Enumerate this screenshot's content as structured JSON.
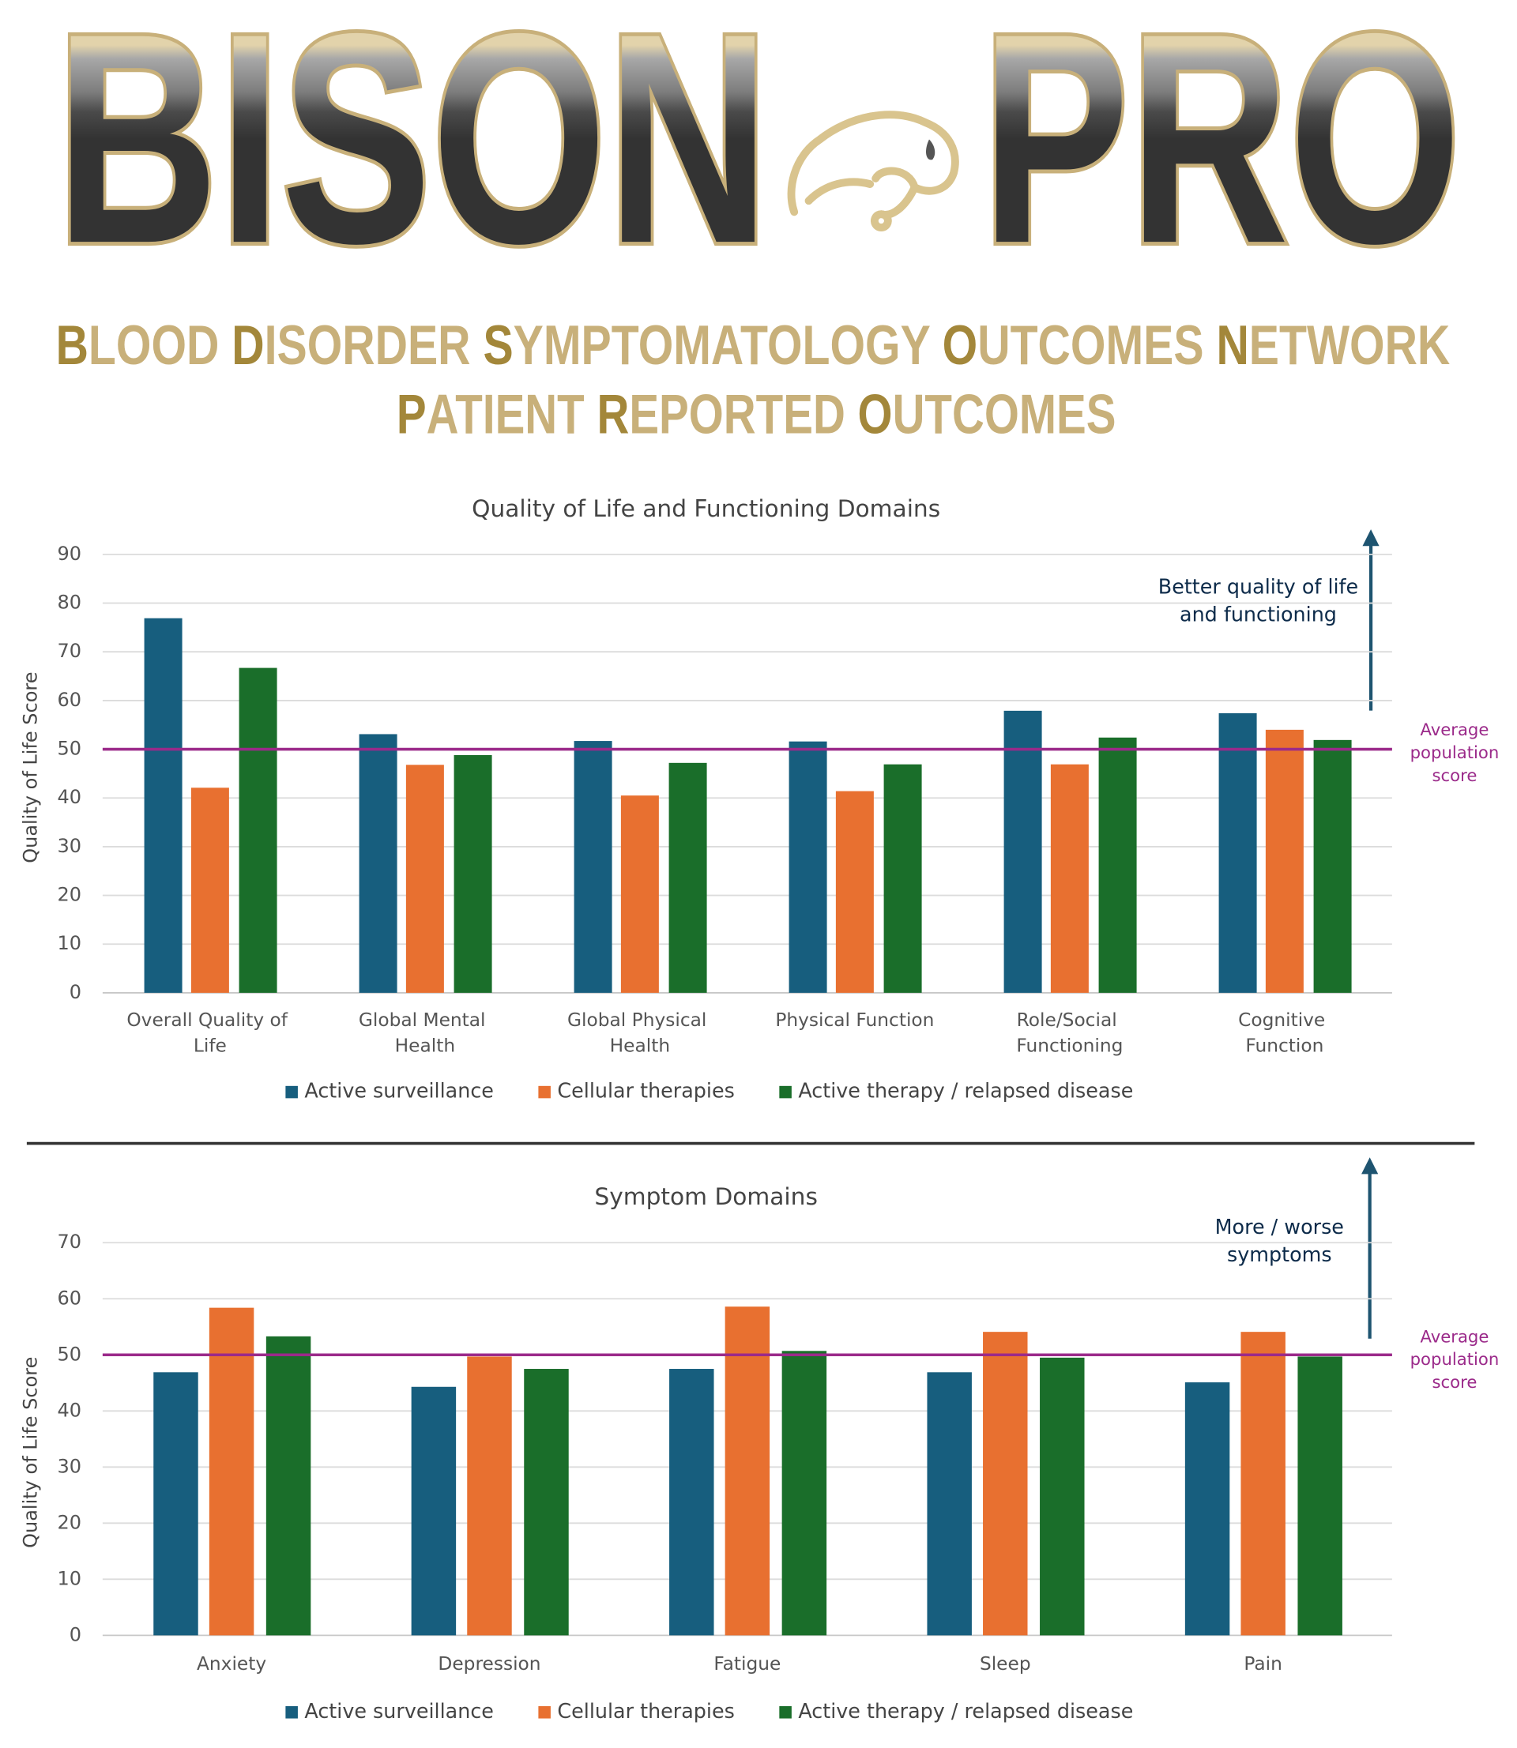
{
  "header": {
    "logo": [
      "BISON",
      "PRO"
    ],
    "subtitle": [
      "BLOOD DISORDER SYMPTOMATOLOGY OUTCOMES NETWORK",
      "PATIENT REPORTED OUTCOMES"
    ]
  },
  "chart_data": [
    {
      "type": "bar",
      "title": "Quality of Life and Functioning Domains",
      "y_label": "Quality of Life Score",
      "categories": [
        "Overall Quality of Life",
        "Global Mental Health",
        "Global Physical Health",
        "Physical Function",
        "Role/Social Functioning",
        "Cognitive Function"
      ],
      "series": [
        {
          "name": "Active surveillance",
          "color": "#175e7e",
          "values": [
            76.9,
            53.1,
            51.7,
            51.6,
            57.9,
            57.4
          ]
        },
        {
          "name": "Cellular therapies",
          "color": "#e87030",
          "values": [
            42.1,
            46.8,
            40.5,
            41.4,
            46.9,
            54.0
          ]
        },
        {
          "name": "Active therapy / relapsed disease",
          "color": "#1a6e2a",
          "values": [
            66.7,
            48.8,
            47.2,
            46.9,
            52.4,
            51.9
          ]
        }
      ],
      "ylim": [
        0,
        90
      ],
      "yticks": [
        0,
        10,
        20,
        30,
        40,
        50,
        60,
        70,
        80,
        90
      ],
      "grid": true,
      "legend": "bottom",
      "reference_line": {
        "value": 50,
        "color": "#9b2a8a",
        "label": [
          "Average",
          "population",
          "score"
        ]
      },
      "annotation": [
        "Better quality of life",
        "and functioning"
      ]
    },
    {
      "type": "bar",
      "title": "Symptom Domains",
      "y_label": "Quality of Life Score",
      "categories": [
        "Anxiety",
        "Depression",
        "Fatigue",
        "Sleep",
        "Pain"
      ],
      "series": [
        {
          "name": "Active surveillance",
          "color": "#175e7e",
          "values": [
            46.9,
            44.3,
            47.5,
            46.9,
            45.1
          ]
        },
        {
          "name": "Cellular therapies",
          "color": "#e87030",
          "values": [
            58.4,
            49.7,
            58.6,
            54.1,
            54.1
          ]
        },
        {
          "name": "Active therapy / relapsed disease",
          "color": "#1a6e2a",
          "values": [
            53.3,
            47.5,
            50.7,
            49.5,
            49.7
          ]
        }
      ],
      "ylim": [
        0,
        70
      ],
      "yticks": [
        0,
        10,
        20,
        30,
        40,
        50,
        60,
        70
      ],
      "grid": true,
      "legend": "bottom",
      "reference_line": {
        "value": 50,
        "color": "#9b2a8a",
        "label": [
          "Average",
          "population",
          "score"
        ]
      },
      "annotation": [
        "More / worse",
        "symptoms"
      ]
    }
  ]
}
